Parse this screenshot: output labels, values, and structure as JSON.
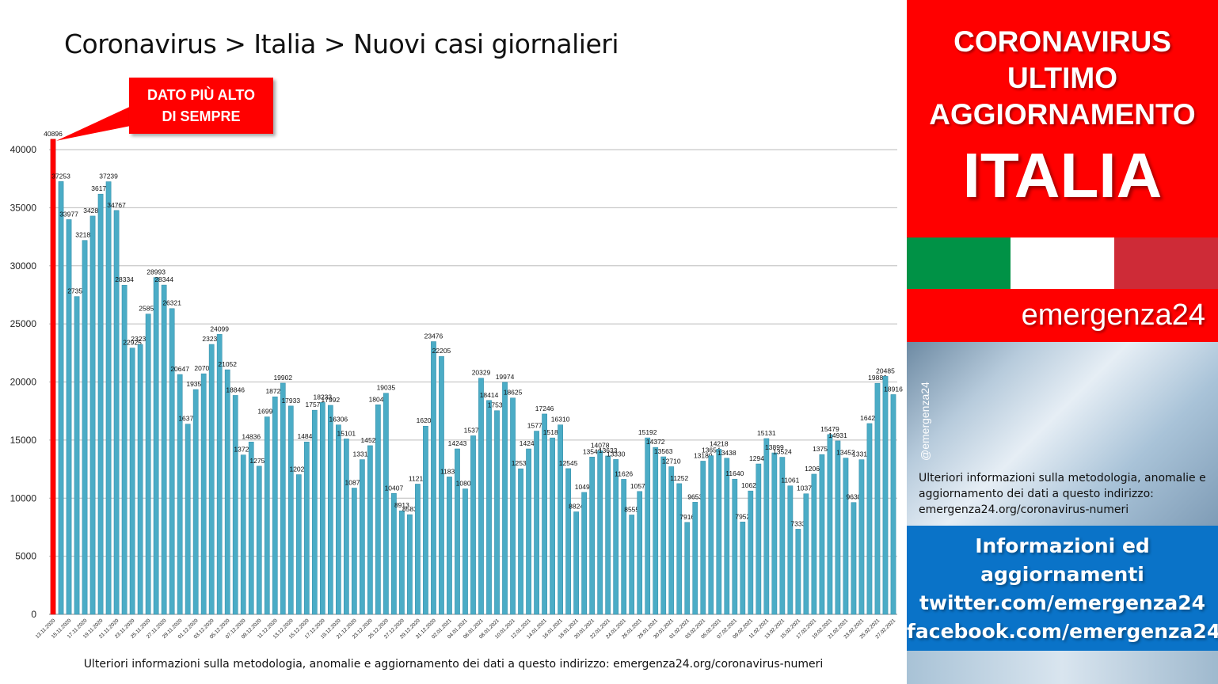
{
  "title": "Coronavirus > Italia > Nuovi casi giornalieri",
  "callout": {
    "line1": "DATO PIÙ ALTO",
    "line2": "DI SEMPRE"
  },
  "footnote": "Ulteriori informazioni sulla metodologia, anomalie e aggiornamento dei dati a questo indirizzo: emergenza24.org/coronavirus-numeri",
  "sidebar": {
    "head_line1": "CORONAVIRUS",
    "head_line2": "ULTIMO",
    "head_line3": "AGGIORNAMENTO",
    "country": "ITALIA",
    "brand": "emergenza24",
    "handle": "@emergenza24",
    "note": "Ulteriori informazioni sulla metodologia, anomalie e aggiornamento dei dati a questo indirizzo: emergenza24.org/coronavirus-numeri",
    "info_line1": "Informazioni ed",
    "info_line2": "aggiornamenti",
    "info_line3": "twitter.com/emergenza24",
    "info_line4": "facebook.com/emergenza24",
    "flag_colors": [
      "#009246",
      "#ffffff",
      "#ce2b37"
    ]
  },
  "colors": {
    "bar": "#4bacc6",
    "highlight": "#ff0000",
    "brand_red": "#ff0000",
    "info_blue": "#0a73c8"
  },
  "chart_data": {
    "type": "bar",
    "ylim": [
      0,
      40000
    ],
    "yticks": [
      0,
      5000,
      10000,
      15000,
      20000,
      25000,
      30000,
      35000,
      40000
    ],
    "grid": true,
    "highlight_index": 0,
    "date_labels": [
      "13.11.2020",
      "15.11.2020",
      "17.11.2020",
      "19.11.2020",
      "21.11.2020",
      "23.11.2020",
      "25.11.2020",
      "27.11.2020",
      "29.11.2020",
      "01.12.2020",
      "03.12.2020",
      "05.12.2020",
      "07.12.2020",
      "09.12.2020",
      "11.12.2020",
      "13.12.2020",
      "15.12.2020",
      "17.12.2020",
      "19.12.2020",
      "21.12.2020",
      "23.12.2020",
      "25.12.2020",
      "27.12.2020",
      "29.12.2020",
      "31.12.2020",
      "02.01.2021",
      "04.01.2021",
      "06.01.2021",
      "08.01.2021",
      "10.01.2021",
      "12.01.2021",
      "14.01.2021",
      "16.01.2021",
      "18.01.2021",
      "20.01.2021",
      "22.01.2021",
      "24.01.2021",
      "26.01.2021",
      "28.01.2021",
      "30.01.2021",
      "01.02.2021",
      "03.02.2021",
      "05.02.2021",
      "07.02.2021",
      "09.02.2021",
      "11.02.2021",
      "13.02.2021",
      "15.02.2021",
      "17.02.2021",
      "19.02.2021",
      "21.02.2021",
      "23.02.2021",
      "25.02.2021",
      "27.02.2021"
    ],
    "values": [
      40896,
      37253,
      33977,
      27354,
      32188,
      34283,
      36173,
      37239,
      34767,
      28334,
      22925,
      23231,
      25851,
      28993,
      28344,
      26321,
      20647,
      16374,
      19350,
      20709,
      23236,
      24099,
      21052,
      18846,
      13720,
      14836,
      12755,
      16998,
      18726,
      19902,
      17933,
      12025,
      14840,
      17572,
      18233,
      17992,
      16306,
      15101,
      10870,
      13318,
      14522,
      18040,
      19035,
      10407,
      8913,
      8583,
      11212,
      16202,
      23476,
      22205,
      11831,
      14243,
      10800,
      15370,
      20329,
      18414,
      17533,
      19974,
      18625,
      12532,
      14241,
      15773,
      17246,
      15187,
      16310,
      12545,
      8824,
      10497,
      13542,
      14078,
      13633,
      13330,
      11626,
      8555,
      10578,
      15192,
      14372,
      13563,
      12710,
      11252,
      7916,
      9653,
      13189,
      13654,
      14218,
      13438,
      11640,
      7952,
      10621,
      12947,
      15131,
      13899,
      13524,
      11061,
      7333,
      10378,
      12067,
      13753,
      15479,
      14931,
      13452,
      9630,
      13314,
      16424,
      19886,
      20485,
      18916
    ]
  }
}
